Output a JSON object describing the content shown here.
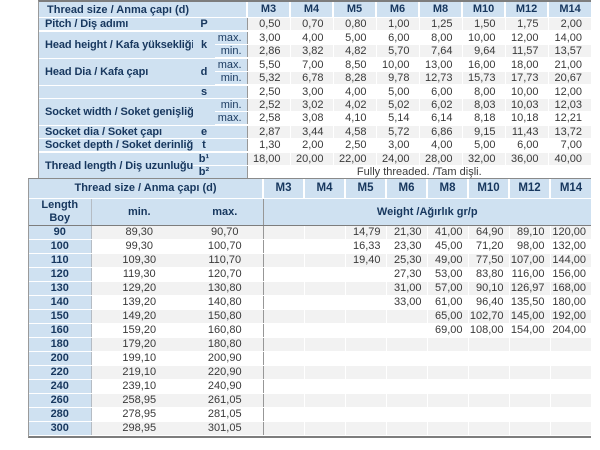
{
  "colors": {
    "header_bg": "#cfe1f1",
    "header_text": "#17375e",
    "data_text": "#3a3a3a",
    "stripe": "#f2f2f2",
    "border_dark": "#7d7d7d"
  },
  "spec_table": {
    "title": "Thread size / Anma çapı (d)",
    "sizes": [
      "M3",
      "M4",
      "M5",
      "M6",
      "M8",
      "M10",
      "M12",
      "M14"
    ],
    "rows": [
      {
        "label": "Pitch / Diş adımı",
        "label_rows": 1,
        "symbol": "P",
        "symbol_rows": 1,
        "sub": "",
        "values": [
          "0,50",
          "0,70",
          "0,80",
          "1,00",
          "1,25",
          "1,50",
          "1,75",
          "2,00"
        ],
        "gend": true
      },
      {
        "label": "Head height / Kafa yüksekliği",
        "label_rows": 2,
        "symbol": "k",
        "symbol_rows": 2,
        "sub": "max.",
        "values": [
          "3,00",
          "4,00",
          "5,00",
          "6,00",
          "8,00",
          "10,00",
          "12,00",
          "14,00"
        ]
      },
      {
        "sub": "min.",
        "values": [
          "2,86",
          "3,82",
          "4,82",
          "5,70",
          "7,64",
          "9,64",
          "11,57",
          "13,57"
        ],
        "gend": true
      },
      {
        "label": "Head Dia / Kafa çapı",
        "label_rows": 2,
        "symbol": "d",
        "symbol_rows": 2,
        "sub": "max.",
        "values": [
          "5,50",
          "7,00",
          "8,50",
          "10,00",
          "13,00",
          "16,00",
          "18,00",
          "21,00"
        ]
      },
      {
        "sub": "min.",
        "values": [
          "5,32",
          "6,78",
          "8,28",
          "9,78",
          "12,73",
          "15,73",
          "17,73",
          "20,67"
        ],
        "gend": true
      },
      {
        "label": "",
        "label_rows": 1,
        "symbol": "s",
        "symbol_rows": 1,
        "sub": "",
        "values": [
          "2,50",
          "3,00",
          "4,00",
          "5,00",
          "6,00",
          "8,00",
          "10,00",
          "12,00"
        ]
      },
      {
        "label": "Socket width / Soket genişliği",
        "label_rows": 2,
        "symbol": "",
        "symbol_rows": 2,
        "sub": "min.",
        "values": [
          "2,52",
          "3,02",
          "4,02",
          "5,02",
          "6,02",
          "8,03",
          "10,03",
          "12,03"
        ]
      },
      {
        "sub": "max.",
        "values": [
          "2,58",
          "3,08",
          "4,10",
          "5,14",
          "6,14",
          "8,18",
          "10,18",
          "12,21"
        ],
        "gend": true
      },
      {
        "label": "Socket dia / Soket çapı",
        "label_rows": 1,
        "symbol": "e",
        "symbol_rows": 1,
        "sub": "",
        "values": [
          "2,87",
          "3,44",
          "4,58",
          "5,72",
          "6,86",
          "9,15",
          "11,43",
          "13,72"
        ]
      },
      {
        "label": "Socket depth / Soket derinliği",
        "label_rows": 1,
        "symbol": "t",
        "symbol_rows": 1,
        "sub": "",
        "values": [
          "1,30",
          "2,00",
          "2,50",
          "3,00",
          "4,00",
          "5,00",
          "6,00",
          "7,00"
        ],
        "gend": true
      },
      {
        "label": "Thread length / Diş uzunluğu",
        "label_rows": 2,
        "symbol": "b¹",
        "symbol_rows": 1,
        "sub": "",
        "values": [
          "18,00",
          "20,00",
          "22,00",
          "24,00",
          "28,00",
          "32,00",
          "36,00",
          "40,00"
        ]
      },
      {
        "symbol": "b²",
        "symbol_rows": 1,
        "sub": "",
        "note": "Fully threaded. /Tam dişli."
      }
    ]
  },
  "weight_table": {
    "title": "Thread size / Anma çapı (d)",
    "sizes": [
      "M3",
      "M4",
      "M5",
      "M6",
      "M8",
      "M10",
      "M12",
      "M14"
    ],
    "length_label_en": "Length",
    "length_label_tr": "Boy",
    "min_label": "min.",
    "max_label": "max.",
    "weight_label": "Weight /Ağırlık gr/p",
    "rows": [
      {
        "length": "90",
        "min": "89,30",
        "max": "90,70",
        "weights": [
          "",
          "",
          "14,79",
          "21,30",
          "41,00",
          "64,90",
          "89,10",
          "120,00"
        ]
      },
      {
        "length": "100",
        "min": "99,30",
        "max": "100,70",
        "weights": [
          "",
          "",
          "16,33",
          "23,30",
          "45,00",
          "71,20",
          "98,00",
          "132,00"
        ]
      },
      {
        "length": "110",
        "min": "109,30",
        "max": "110,70",
        "weights": [
          "",
          "",
          "19,40",
          "25,30",
          "49,00",
          "77,50",
          "107,00",
          "144,00"
        ]
      },
      {
        "length": "120",
        "min": "119,30",
        "max": "120,70",
        "weights": [
          "",
          "",
          "",
          "27,30",
          "53,00",
          "83,80",
          "116,00",
          "156,00"
        ]
      },
      {
        "length": "130",
        "min": "129,20",
        "max": "130,80",
        "weights": [
          "",
          "",
          "",
          "31,00",
          "57,00",
          "90,10",
          "126,97",
          "168,00"
        ]
      },
      {
        "length": "140",
        "min": "139,20",
        "max": "140,80",
        "weights": [
          "",
          "",
          "",
          "33,00",
          "61,00",
          "96,40",
          "135,50",
          "180,00"
        ]
      },
      {
        "length": "150",
        "min": "149,20",
        "max": "150,80",
        "weights": [
          "",
          "",
          "",
          "",
          "65,00",
          "102,70",
          "145,00",
          "192,00"
        ]
      },
      {
        "length": "160",
        "min": "159,20",
        "max": "160,80",
        "weights": [
          "",
          "",
          "",
          "",
          "69,00",
          "108,00",
          "154,00",
          "204,00"
        ]
      },
      {
        "length": "180",
        "min": "179,20",
        "max": "180,80",
        "weights": [
          "",
          "",
          "",
          "",
          "",
          "",
          "",
          ""
        ]
      },
      {
        "length": "200",
        "min": "199,10",
        "max": "200,90",
        "weights": [
          "",
          "",
          "",
          "",
          "",
          "",
          "",
          ""
        ]
      },
      {
        "length": "220",
        "min": "219,10",
        "max": "220,90",
        "weights": [
          "",
          "",
          "",
          "",
          "",
          "",
          "",
          ""
        ]
      },
      {
        "length": "240",
        "min": "239,10",
        "max": "240,90",
        "weights": [
          "",
          "",
          "",
          "",
          "",
          "",
          "",
          ""
        ]
      },
      {
        "length": "260",
        "min": "258,95",
        "max": "261,05",
        "weights": [
          "",
          "",
          "",
          "",
          "",
          "",
          "",
          ""
        ]
      },
      {
        "length": "280",
        "min": "278,95",
        "max": "281,05",
        "weights": [
          "",
          "",
          "",
          "",
          "",
          "",
          "",
          ""
        ]
      },
      {
        "length": "300",
        "min": "298,95",
        "max": "301,05",
        "weights": [
          "",
          "",
          "",
          "",
          "",
          "",
          "",
          ""
        ]
      }
    ]
  }
}
